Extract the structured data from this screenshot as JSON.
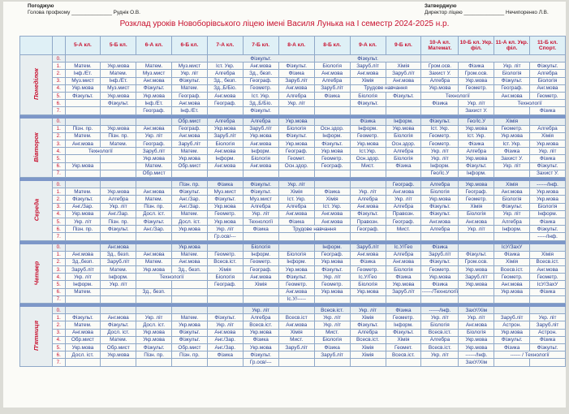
{
  "header": {
    "left_heading": "Погоджую",
    "left_line": "Голова профкому ______________ Руднік О.В.",
    "right_heading": "Затверджую",
    "right_line": "Директор ліцею ______________ Нечипоренко Л.В."
  },
  "title": "Розклад уроків Новоборівського ліцею імені Василя Лунька на І семестр 2024-2025 н.р.",
  "columns": [
    "5-А кл.",
    "5-Б кл.",
    "6-А кл.",
    "6-Б кл.",
    "7-А кл.",
    "7-Б кл.",
    "8-А кл.",
    "8-Б кл.",
    "9-А кл.",
    "9-Б кл.",
    "10-А кл. Математ.",
    "10-Б кл. Укр. філ.",
    "11-А кл. Укр. філ.",
    "11-Б кл. Спорт."
  ],
  "lesson_numbers": [
    "0.",
    "1.",
    "2.",
    "3.",
    "4.",
    "5.",
    "6.",
    "7."
  ],
  "days": [
    {
      "name": "Понеділок",
      "rows": [
        [
          {
            "t": "",
            "s": 4
          },
          {
            "t": "Фізкульт.",
            "s": 3
          },
          {
            "t": "Фізкульт.",
            "s": 3
          },
          {
            "t": "",
            "s": 4
          }
        ],
        [
          "Матем.",
          "Укр.мова",
          "Матем.",
          "Муз.мист",
          "Іст. Укр.",
          "Анг.мова",
          "Фізкульт.",
          "Біологія",
          "Заруб.літ",
          "Хімія",
          "Гром.осв.",
          "Фізика",
          "Укр. літ",
          "Фізкульт."
        ],
        [
          "Інф./Ет.",
          "Матем.",
          "Муз.мист",
          "Укр. літ",
          "Алгебра",
          "Зд., безп.",
          "Фізика",
          "Анг.мова",
          "Анг.мова",
          "Заруб.літ",
          "Захист У.",
          "Гром.осв.",
          "Біологія",
          "Алгебра"
        ],
        [
          "Муз.мист",
          "Інф./Ет.",
          "Анг.мова",
          "Фізкульт.",
          "Зд., безп.",
          "Географ.",
          "Заруб.літ",
          "Алгебра",
          "Хімія",
          "Анг.мова",
          "Алгебра",
          "Укр.мова",
          "Фізкульт.",
          "Біологія"
        ],
        [
          "Укр.мова",
          "Муз.мист",
          "Фізкульт.",
          "Матем.",
          "Зд.,Б/Біо.",
          "Геометр.",
          "Анг.мова",
          "Заруб.літ",
          {
            "t": "Трудове навчання",
            "s": 2
          },
          "Укр.мова",
          "Геометр.",
          "Географ.",
          "Анг.мова"
        ],
        [
          "Фізкульт.",
          "Укр.мова",
          "Укр.мова",
          "Географ.",
          "Анг.мова",
          "Іст. Укр.",
          "Алгебра",
          "Фізика",
          "Біологія",
          "Фізкульт.",
          {
            "t": "Технології",
            "s": 2
          },
          "Анг.мова",
          "Геометр."
        ],
        [
          "",
          "Фізкульт.",
          "Інф./Ет.",
          "Анг.мова",
          "Географ.",
          "Зд.,Б/Біо.",
          "Укр. літ",
          "",
          "Фізкульт.",
          "",
          "Фізика",
          "Укр. літ",
          {
            "t": "Технології",
            "s": 2
          }
        ],
        [
          "",
          "",
          "Географ.",
          "Інф./Ет.",
          "",
          "Фізкульт.",
          "",
          "",
          "",
          "",
          "",
          "Захист У.",
          "",
          "Фізика"
        ]
      ]
    },
    {
      "name": "Вівторок",
      "rows": [
        [
          "",
          "",
          "",
          "Обр.мист",
          "Алгебра",
          "Алгебра",
          "Укр.мова",
          "",
          "Фізика",
          "Інформ.",
          "Фізкульт.",
          "Гео/Іс.У",
          "Хімія",
          ""
        ],
        [
          "Пізн. пр.",
          "Укр.мова",
          "Анг.мова",
          "Географ.",
          "Укр.мова",
          "Заруб.літ",
          "Біологія",
          "Осн.здор.",
          "Інформ.",
          "Укр.мова",
          "Іст. Укр.",
          "Укр.мова",
          "Геометр.",
          "Алгебра"
        ],
        [
          "Матем.",
          "Пізн. пр.",
          "Укр. літ",
          "Анг.мова",
          "Заруб.літ",
          "Укр.мова",
          "Фізкульт.",
          "Інформ.",
          "Геометр.",
          "Біологія",
          "Геометр.",
          "Іст. Укр.",
          "Укр.мова",
          "Хімія"
        ],
        [
          "Анг.мова",
          "Матем.",
          "Географ.",
          "Заруб.літ",
          "Біологія",
          "Анг.мова",
          "Укр.мова",
          "Фізкульт.",
          "Укр.мова",
          "Осн.здор.",
          "Геометр.",
          "Фізика",
          "Іст. Укр.",
          "Укр.мова"
        ],
        [
          {
            "t": "Технології",
            "s": 2
          },
          "Заруб.літ",
          "Матем.",
          "Анг.мова",
          "Інформ.",
          "Географ.",
          "Укр.мова",
          "Іст.Укр.",
          "Алгебра",
          "Укр. літ",
          "Алгебра",
          "Фізика",
          "Укр. літ"
        ],
        [
          "",
          "",
          "Укр.мова",
          "Укр.мова",
          "Інформ.",
          "Біологія",
          "Геомет.",
          "Геометр.",
          "Осн.здор.",
          "Біологія",
          "Укр. літ",
          "Укр.мова",
          "Захист У.",
          "Фізика"
        ],
        [
          "Укр.мова",
          "",
          "Матем.",
          "Обр.мист",
          "Анг.мова",
          "Анг.мова",
          "Осн.здор.",
          "Географ.",
          "Мист.",
          "Фізика",
          "Інформ.",
          "Фізкульт.",
          "Укр. літ",
          "Фізкульт."
        ],
        [
          "",
          "",
          "Обр.мист",
          "",
          "",
          "",
          "",
          "",
          "",
          "",
          "Гео/Іс.У",
          "Інформ.",
          "",
          "Захист У."
        ]
      ]
    },
    {
      "name": "Середа",
      "rows": [
        [
          "",
          "",
          "",
          "Пізн. пр.",
          "Фізика",
          "Фізкульт.",
          "Укр. літ",
          "",
          "",
          "Географ.",
          "Алгебра",
          "Укр.мова",
          "Хімія",
          "------/Інф."
        ],
        [
          "Матем.",
          "Укр.мова",
          "Анг.мова",
          "Фізкульт.",
          "Муз.мист",
          "Фізкульт.",
          "Хімія",
          "Фізика",
          "Укр. літ",
          "Анг.мова",
          "Біологія",
          "Географ.",
          "Анг.мова",
          "Укр.мова"
        ],
        [
          "Фізкульт.",
          "Алгебра",
          "Матем.",
          "Анг./Зар.",
          "Фізкульт.",
          "Муз.мист",
          "Іст. Укр.",
          "Хімія",
          "Алгебра",
          "Укр. літ",
          "Укр.мова",
          "Геометр.",
          "Біологія",
          "Укр.мова"
        ],
        [
          "Анг./Зар.",
          "Укр. літ",
          "Пізн. пр.",
          "Анг./Зар.",
          "Укр.мова",
          "Алгебра",
          "Алгебра",
          "Іст. Укр.",
          "Анг.мова",
          "Алгебра",
          "Фізкульт.",
          "Хімія",
          "Фізкульт.",
          "Біологія"
        ],
        [
          "Укр.мова",
          "Анг./Зар.",
          "Досл. іст.",
          "Матем.",
          "Геометр.",
          "Укр. літ",
          "Анг.мова",
          "Анг.мова",
          "Фізкульт.",
          "Правозн.",
          "Фізкульт.",
          "Біологія",
          "Укр. літ",
          "Інформ."
        ],
        [
          "Укр. літ",
          "Пізн. пр.",
          "Фізкульт.",
          "Досл. іст.",
          "Укр.мова",
          "Технології",
          "Фізика",
          "Анг.мова",
          "Правозн.",
          "Географ.",
          "Анг.мова",
          "Анг.мова",
          "Алгебра",
          "Фізика"
        ],
        [
          "Пізн. пр.",
          "Фізкульт.",
          "Анг./Зар.",
          "Укр.мова",
          "Укр. літ",
          "Фізика",
          {
            "t": "Трудове навчання",
            "s": 2
          },
          "Географ.",
          "Мист.",
          "Алгебра",
          "Укр. літ",
          "Інформ.",
          "Фізкульт."
        ],
        [
          "",
          "",
          "",
          "",
          "Гр.осв/---",
          "",
          "",
          "",
          "",
          "",
          "",
          "",
          "",
          "-----/Інф."
        ]
      ]
    },
    {
      "name": "Четвер",
      "rows": [
        [
          "",
          "Анг.мова",
          "",
          "Укр.мова",
          "",
          "Біологія",
          "",
          "Інформ.",
          "Заруб.літ",
          "Іс.У/Гео",
          "Фізика",
          "",
          "ІсУ/ЗахУ",
          ""
        ],
        [
          "Анг.мова",
          "Зд., безп.",
          "Анг.мова",
          "Матем.",
          "Геометр.",
          "Інформ.",
          "Біологія",
          "Географ.",
          "Анг.мова",
          "Алгебра",
          "Заруб.літ",
          "Фізкульт.",
          "Фізика",
          "Хімія"
        ],
        [
          "Зд.,безп.",
          "Заруб.літ",
          "Матем.",
          "Анг.мова",
          "Всесв.іст.",
          "Геометр.",
          "Інформ.",
          "Укр.мова",
          "Фізика",
          "Анг.мова",
          "Фізкульт.",
          "Гром.осв.",
          "Хімія",
          "Всесв.іст."
        ],
        [
          "Заруб.літ",
          "Матем.",
          "Укр.мова",
          "Зд., безп.",
          "Хімія",
          "Географ.",
          "Укр.мова",
          "Фізкульт.",
          "Геометр.",
          "Біологія",
          "Геометр.",
          "Укр.мова",
          "Всесв.іст.",
          "Анг.мова"
        ],
        [
          "Укр. літ",
          "Інформ.",
          {
            "t": "Технології",
            "s": 2
          },
          "Біологія",
          "Анг.мова",
          "Фізкульт.",
          "Укр. літ",
          "Іс.У/Гео",
          "Фізика",
          "Укр.мова",
          "Заруб.літ",
          "Геометр.",
          "Геометр."
        ],
        [
          "Інформ.",
          "Укр. літ",
          "",
          "",
          "Географ.",
          "Хімія",
          "Геометр.",
          "Геометр.",
          "Біологія",
          "Укр.мова",
          "Фізика",
          "Укр.мова",
          "Анг.мова",
          "ІсУ/ЗахУ"
        ],
        [
          "Матем.",
          "",
          "Зд., безп.",
          "",
          "",
          "",
          "Анг.мова",
          "Укр.мова",
          "Укр.мова",
          "Заруб.літ",
          "------/Технології",
          "",
          "Укр.мова",
          "Фізика"
        ],
        [
          "",
          "",
          "",
          "",
          "",
          "",
          "Іс.У/-----",
          "",
          "",
          "",
          "",
          "",
          "",
          ""
        ]
      ]
    },
    {
      "name": "П'ятниця",
      "rows": [
        [
          "",
          "",
          "",
          "",
          "",
          "Укр. літ",
          "",
          "Всесв.іст.",
          "Укр. літ",
          "Фізика",
          "------/Інф.",
          "ЗахУ/Хім",
          "",
          ""
        ],
        [
          "Фізкульт.",
          "Анг.мова",
          "Укр. літ",
          "Матем.",
          "Фізкульт.",
          "Алгебра",
          "Всесв.іст",
          "Укр. літ",
          "Хімія",
          "Геометр.",
          "Укр. літ",
          "Укр. літ",
          "Заруб.літ",
          "Укр. літ"
        ],
        [
          "Матем.",
          "Фізкульт.",
          "Досл. іст.",
          "Укр.мова",
          "Укр. літ",
          "Всесв.іст.",
          "Анг.мова",
          "Укр. літ",
          "Фізкульт.",
          "Інформ.",
          "Біологія",
          "Анг.мова",
          "Астрон.",
          "Заруб.літ"
        ],
        [
          "Анг.мова",
          "Досл. іст.",
          "Укр.мова",
          "Фізкульт.",
          "Анг.мова",
          "Укр.мова",
          "Хімія",
          "Мист.",
          "Алгебра",
          "Фізкульт.",
          "Всесв.іст.",
          "Біологія",
          "Укр.мова",
          "Астрон."
        ],
        [
          "Обр.мист",
          "Матем.",
          "Укр.мова",
          "Фізкульт.",
          "Анг./Зар.",
          "Фізика",
          "Мист.",
          "Біологія",
          "Всесв.іст.",
          "Хімія",
          "Алгебра",
          "Укр.мова",
          "Фізкульт.",
          "Фізика"
        ],
        [
          "Укр.мова",
          "Обр.мист",
          "Фізкульт.",
          "Обр.мист",
          "Анг./Зар.",
          "Укр.мова",
          "Заруб.літ",
          "Фізика",
          "Хімія",
          "Геомет.",
          "Всесв.іст.",
          "Укр.мова",
          "Фізика",
          "Фізкульт."
        ],
        [
          "Досл. іст.",
          "Укр.мова",
          "Пізн. пр.",
          "Пізн. пр.",
          "Фізика",
          "Фізкульт.",
          "",
          "Заруб.літ",
          "Хімія",
          "Всесв.іст.",
          "Укр. літ",
          "------/Інф.",
          {
            "t": "------ / Технології",
            "s": 2
          }
        ],
        [
          "",
          "",
          "",
          "",
          "",
          "Гр.осв/---",
          "",
          "",
          "",
          "",
          "",
          "ЗахУ/Хім",
          "",
          ""
        ]
      ]
    }
  ]
}
